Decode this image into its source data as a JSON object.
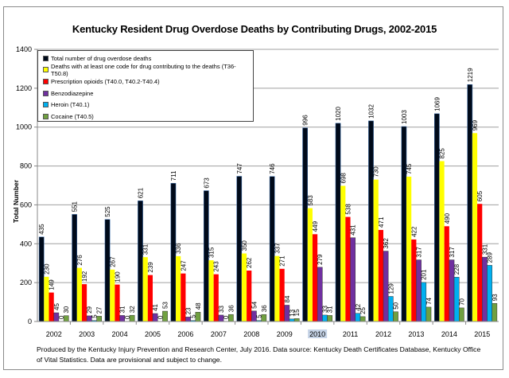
{
  "chart_data": {
    "type": "bar",
    "title": "Kentucky Resident Drug Overdose Deaths by Contributing Drugs, 2002-2015",
    "xlabel": "",
    "ylabel": "Total Number",
    "ylim": [
      0,
      1400
    ],
    "yticks": [
      0,
      200,
      400,
      600,
      800,
      1000,
      1200,
      1400
    ],
    "grid": true,
    "legend_position": "top-left",
    "categories": [
      "2002",
      "2003",
      "2004",
      "2005",
      "2006",
      "2007",
      "2008",
      "2009",
      "2010",
      "2011",
      "2012",
      "2013",
      "2014",
      "2015"
    ],
    "highlighted_category": "2010",
    "series": [
      {
        "name": "Total number of drug overdose deaths",
        "color": "#000a1a",
        "values": [
          435,
          551,
          525,
          621,
          711,
          673,
          747,
          746,
          996,
          1020,
          1032,
          1003,
          1069,
          1219
        ]
      },
      {
        "name": "Deaths with at least one code for drug contributing to the deaths (T36-T50.8)",
        "color": "#ffff00",
        "values": [
          230,
          276,
          267,
          331,
          336,
          315,
          350,
          337,
          583,
          698,
          730,
          745,
          825,
          969
        ]
      },
      {
        "name": "Prescription opioids (T40.0, T40.2-T40.4)",
        "color": "#ff0000",
        "values": [
          149,
          192,
          190,
          239,
          247,
          243,
          262,
          271,
          449,
          538,
          471,
          422,
          490,
          605
        ]
      },
      {
        "name": "Benzodiazepine",
        "color": "#7030a0",
        "values": [
          45,
          29,
          31,
          41,
          23,
          33,
          54,
          84,
          279,
          431,
          362,
          317,
          317,
          331
        ]
      },
      {
        "name": "Heroin (T40.1)",
        "color": "#00b0f0",
        "values": [
          0,
          5,
          0,
          0,
          5,
          0,
          5,
          13,
          33,
          42,
          129,
          201,
          228,
          289
        ]
      },
      {
        "name": "Cocaine (T40.5)",
        "color": "#70a040",
        "values": [
          30,
          27,
          32,
          53,
          48,
          36,
          36,
          15,
          31,
          25,
          50,
          74,
          70,
          93
        ]
      }
    ]
  },
  "footnote": "Produced by the Kentucky Injury Prevention and Research Center, July 2016. Data source: Kentucky Death Certificates Database, Kentucky Office of Vital Statistics. Data are provisional and subject to change."
}
